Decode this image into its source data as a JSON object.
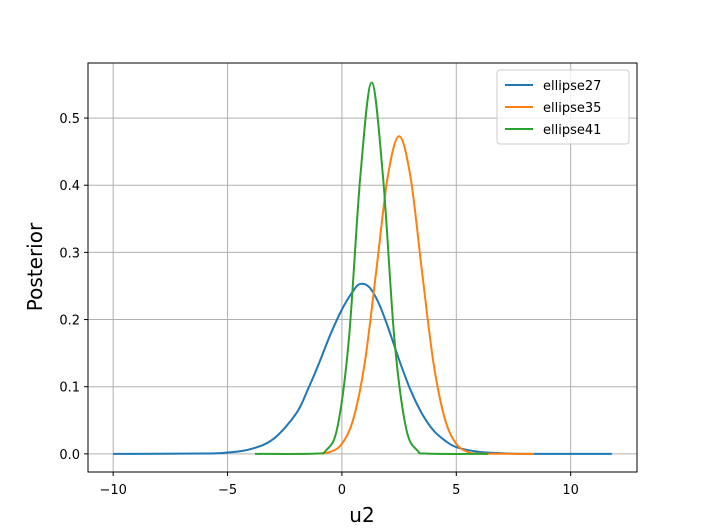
{
  "chart_data": {
    "type": "line",
    "xlabel": "u2",
    "ylabel": "Posterior",
    "xlim": [
      -11.1,
      12.9
    ],
    "ylim": [
      -0.027,
      0.582
    ],
    "xticks": [
      {
        "value": -10,
        "label": "−10"
      },
      {
        "value": -5,
        "label": "−5"
      },
      0,
      5,
      10
    ],
    "yticks": [
      {
        "value": 0,
        "label": "0.0"
      },
      0.1,
      0.2,
      0.3,
      0.4,
      0.5
    ],
    "grid": true,
    "legend": "upper right",
    "series": [
      {
        "name": "ellipse27",
        "color": "#1f77b4",
        "x": [
          -10,
          -6,
          -5,
          -4,
          -3,
          -2,
          -1.5,
          -1,
          -0.5,
          0,
          0.5,
          0.8,
          1.2,
          1.6,
          2,
          2.5,
          3,
          3.5,
          4,
          4.5,
          5,
          6,
          7,
          8,
          11.8
        ],
        "values": [
          0,
          0.0005,
          0.002,
          0.007,
          0.022,
          0.06,
          0.095,
          0.135,
          0.178,
          0.215,
          0.243,
          0.253,
          0.248,
          0.225,
          0.19,
          0.14,
          0.095,
          0.06,
          0.035,
          0.02,
          0.01,
          0.003,
          0.001,
          0,
          0
        ]
      },
      {
        "name": "ellipse35",
        "color": "#ff7f0e",
        "x": [
          -1,
          -0.5,
          0,
          0.5,
          1,
          1.5,
          2,
          2.5,
          3,
          3.5,
          4,
          4.5,
          5,
          5.5,
          6,
          8.4
        ],
        "values": [
          0.0005,
          0.003,
          0.015,
          0.052,
          0.136,
          0.272,
          0.412,
          0.473,
          0.412,
          0.272,
          0.136,
          0.052,
          0.015,
          0.003,
          0.0005,
          0
        ]
      },
      {
        "name": "ellipse41",
        "color": "#2ca02c",
        "x": [
          -3.8,
          -1.2,
          -0.7,
          -0.2,
          0.3,
          0.8,
          1.3,
          1.8,
          2.3,
          2.8,
          3.3,
          3.8,
          6.4
        ],
        "values": [
          0,
          0.0003,
          0.005,
          0.039,
          0.169,
          0.411,
          0.553,
          0.411,
          0.169,
          0.039,
          0.005,
          0.0003,
          0
        ]
      }
    ]
  }
}
